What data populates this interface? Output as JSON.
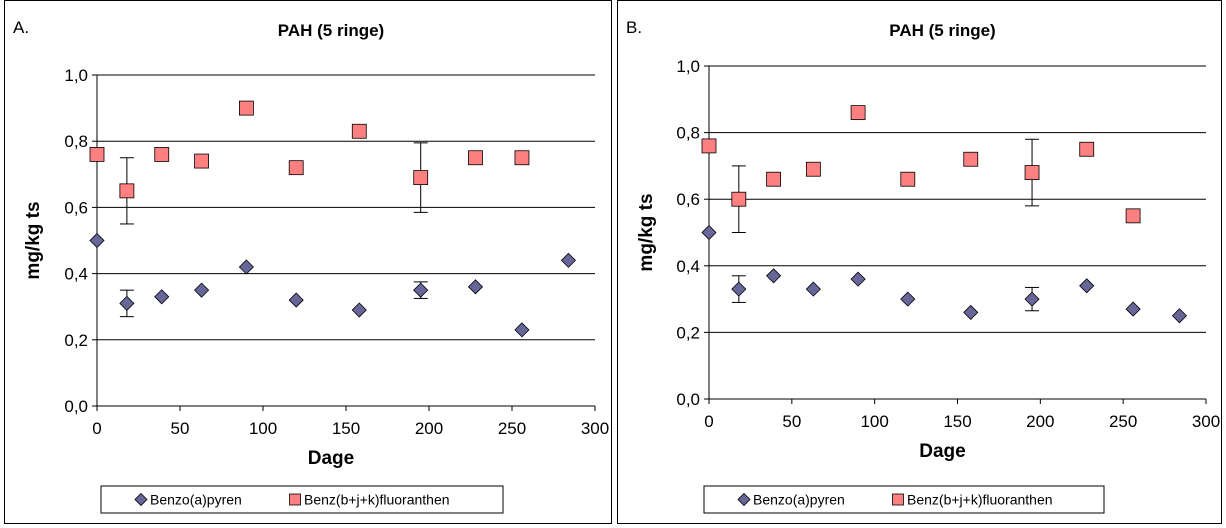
{
  "chart_data": [
    {
      "type": "scatter",
      "panel_label": "A.",
      "title": "PAH (5 ringe)",
      "xlabel": "Dage",
      "ylabel": "mg/kg ts",
      "xlim": [
        0,
        300
      ],
      "ylim": [
        0,
        1.0
      ],
      "x_ticks": [
        "0",
        "50",
        "100",
        "150",
        "200",
        "250",
        "300"
      ],
      "y_ticks": [
        "0,0",
        "0,2",
        "0,4",
        "0,6",
        "0,8",
        "1,0"
      ],
      "grid": "horizontal",
      "legend_position": "bottom",
      "series": [
        {
          "name": "Benzo(a)pyren",
          "marker": "diamond",
          "color": "#666699",
          "points": [
            {
              "x": 0,
              "y": 0.5
            },
            {
              "x": 18,
              "y": 0.31,
              "err": 0.04
            },
            {
              "x": 39,
              "y": 0.33
            },
            {
              "x": 63,
              "y": 0.35
            },
            {
              "x": 90,
              "y": 0.42
            },
            {
              "x": 120,
              "y": 0.32
            },
            {
              "x": 158,
              "y": 0.29
            },
            {
              "x": 195,
              "y": 0.35,
              "err": 0.025
            },
            {
              "x": 228,
              "y": 0.36
            },
            {
              "x": 256,
              "y": 0.23
            },
            {
              "x": 284,
              "y": 0.44
            }
          ]
        },
        {
          "name": "Benz(b+j+k)fluoranthen",
          "marker": "square",
          "color": "#ff8080",
          "points": [
            {
              "x": 0,
              "y": 0.76
            },
            {
              "x": 18,
              "y": 0.65,
              "err": 0.1
            },
            {
              "x": 39,
              "y": 0.76
            },
            {
              "x": 63,
              "y": 0.74
            },
            {
              "x": 90,
              "y": 0.9
            },
            {
              "x": 120,
              "y": 0.72
            },
            {
              "x": 158,
              "y": 0.83
            },
            {
              "x": 195,
              "y": 0.69,
              "err": 0.105
            },
            {
              "x": 228,
              "y": 0.75
            },
            {
              "x": 256,
              "y": 0.75
            }
          ]
        }
      ]
    },
    {
      "type": "scatter",
      "panel_label": "B.",
      "title": "PAH (5 ringe)",
      "xlabel": "Dage",
      "ylabel": "mg/kg ts",
      "xlim": [
        0,
        300
      ],
      "ylim": [
        0,
        1.0
      ],
      "x_ticks": [
        "0",
        "50",
        "100",
        "150",
        "200",
        "250",
        "300"
      ],
      "y_ticks": [
        "0,0",
        "0,2",
        "0,4",
        "0,6",
        "0,8",
        "1,0"
      ],
      "grid": "horizontal",
      "legend_position": "bottom",
      "series": [
        {
          "name": "Benzo(a)pyren",
          "marker": "diamond",
          "color": "#666699",
          "points": [
            {
              "x": 0,
              "y": 0.5
            },
            {
              "x": 18,
              "y": 0.33,
              "err": 0.04
            },
            {
              "x": 39,
              "y": 0.37
            },
            {
              "x": 63,
              "y": 0.33
            },
            {
              "x": 90,
              "y": 0.36
            },
            {
              "x": 120,
              "y": 0.3
            },
            {
              "x": 158,
              "y": 0.26
            },
            {
              "x": 195,
              "y": 0.3,
              "err": 0.035
            },
            {
              "x": 228,
              "y": 0.34
            },
            {
              "x": 256,
              "y": 0.27
            },
            {
              "x": 284,
              "y": 0.25
            }
          ]
        },
        {
          "name": "Benz(b+j+k)fluoranthen",
          "marker": "square",
          "color": "#ff8080",
          "points": [
            {
              "x": 0,
              "y": 0.76
            },
            {
              "x": 18,
              "y": 0.6,
              "err": 0.1
            },
            {
              "x": 39,
              "y": 0.66
            },
            {
              "x": 63,
              "y": 0.69
            },
            {
              "x": 90,
              "y": 0.86
            },
            {
              "x": 120,
              "y": 0.66
            },
            {
              "x": 158,
              "y": 0.72
            },
            {
              "x": 195,
              "y": 0.68,
              "err": 0.1
            },
            {
              "x": 228,
              "y": 0.75
            },
            {
              "x": 256,
              "y": 0.55
            }
          ]
        }
      ]
    }
  ]
}
